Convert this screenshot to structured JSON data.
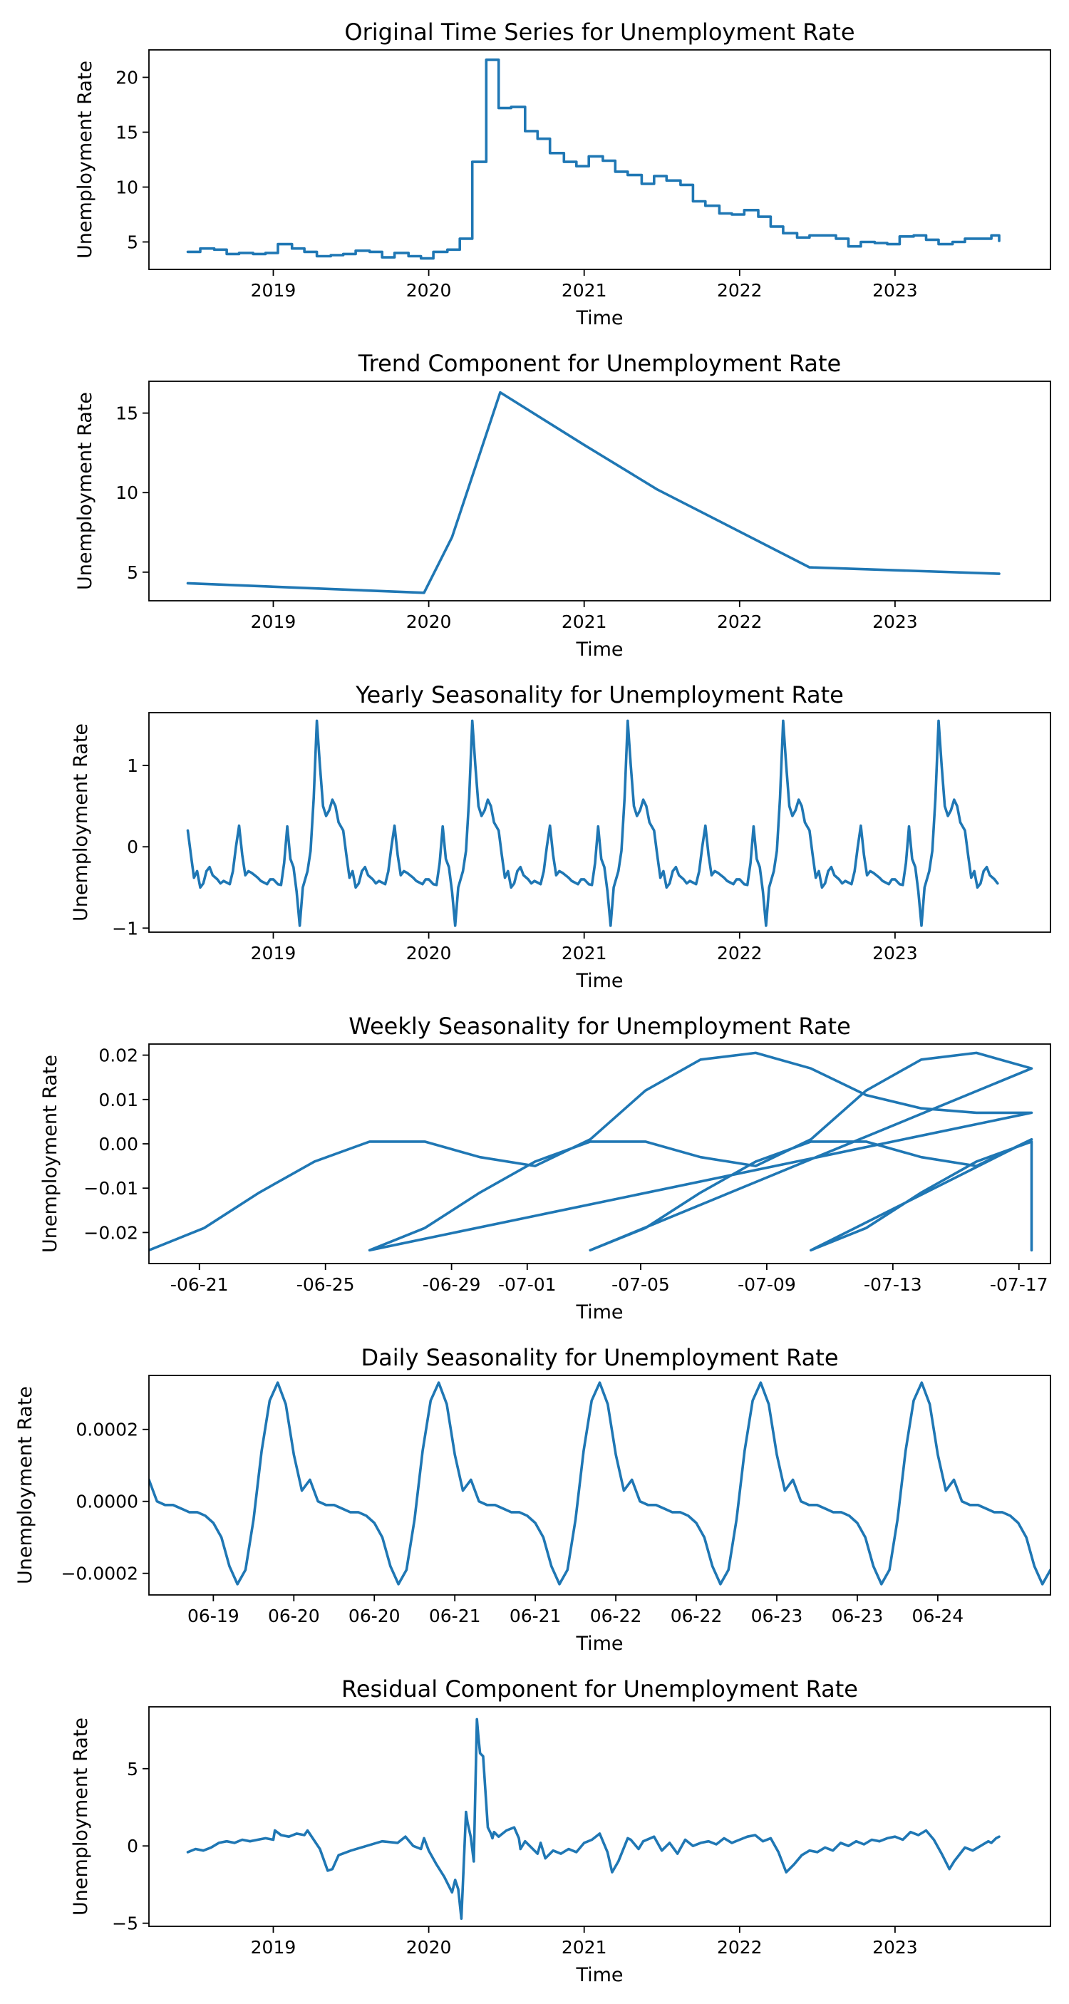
{
  "chart_data": [
    {
      "type": "line",
      "title": "Original Time Series for Unemployment Rate",
      "xlabel": "Time",
      "ylabel": "Unemployment Rate",
      "xlim": [
        2018.2,
        2024.0
      ],
      "ylim": [
        2.5,
        22.5
      ],
      "x_ticks": [
        2019,
        2020,
        2021,
        2022,
        2023
      ],
      "x_tick_labels": [
        "2019",
        "2020",
        "2021",
        "2022",
        "2023"
      ],
      "y_ticks": [
        5,
        10,
        15,
        20
      ],
      "y_tick_labels": [
        "5",
        "10",
        "15",
        "20"
      ],
      "step": true,
      "series": [
        {
          "name": "Unemployment Rate",
          "color": "#1f77b4",
          "x": [
            2018.45,
            2018.53,
            2018.62,
            2018.7,
            2018.78,
            2018.87,
            2018.95,
            2019.03,
            2019.12,
            2019.2,
            2019.28,
            2019.37,
            2019.45,
            2019.53,
            2019.62,
            2019.7,
            2019.78,
            2019.87,
            2019.95,
            2020.03,
            2020.12,
            2020.2,
            2020.28,
            2020.37,
            2020.45,
            2020.53,
            2020.62,
            2020.7,
            2020.78,
            2020.87,
            2020.95,
            2021.03,
            2021.12,
            2021.2,
            2021.28,
            2021.37,
            2021.45,
            2021.53,
            2021.62,
            2021.7,
            2021.78,
            2021.87,
            2021.95,
            2022.03,
            2022.12,
            2022.2,
            2022.28,
            2022.37,
            2022.45,
            2022.53,
            2022.62,
            2022.7,
            2022.78,
            2022.87,
            2022.95,
            2023.03,
            2023.12,
            2023.2,
            2023.28,
            2023.37,
            2023.45,
            2023.53,
            2023.62,
            2023.67
          ],
          "y": [
            4.1,
            4.4,
            4.3,
            3.9,
            4.0,
            3.9,
            4.0,
            4.8,
            4.4,
            4.1,
            3.7,
            3.8,
            3.9,
            4.2,
            4.1,
            3.6,
            4.0,
            3.7,
            3.5,
            4.1,
            4.3,
            5.3,
            12.3,
            21.6,
            17.2,
            17.3,
            15.1,
            14.4,
            13.1,
            12.3,
            11.9,
            12.8,
            12.4,
            11.4,
            11.1,
            10.3,
            11.0,
            10.6,
            10.2,
            8.7,
            8.3,
            7.6,
            7.5,
            7.9,
            7.3,
            6.4,
            5.8,
            5.4,
            5.6,
            5.6,
            5.3,
            4.6,
            5.0,
            4.9,
            4.8,
            5.5,
            5.6,
            5.2,
            4.8,
            5.0,
            5.3,
            5.3,
            5.6,
            5.1
          ]
        }
      ]
    },
    {
      "type": "line",
      "title": "Trend Component for Unemployment Rate",
      "xlabel": "Time",
      "ylabel": "Unemployment Rate",
      "xlim": [
        2018.2,
        2024.0
      ],
      "ylim": [
        3.2,
        17.0
      ],
      "x_ticks": [
        2019,
        2020,
        2021,
        2022,
        2023
      ],
      "x_tick_labels": [
        "2019",
        "2020",
        "2021",
        "2022",
        "2023"
      ],
      "y_ticks": [
        5,
        10,
        15
      ],
      "y_tick_labels": [
        "5",
        "10",
        "15"
      ],
      "series": [
        {
          "name": "Trend",
          "color": "#1f77b4",
          "x": [
            2018.45,
            2019.97,
            2020.15,
            2020.46,
            2021.0,
            2021.47,
            2022.45,
            2023.67
          ],
          "y": [
            4.3,
            3.7,
            7.2,
            16.3,
            13.0,
            10.2,
            5.3,
            4.9
          ]
        }
      ]
    },
    {
      "type": "line",
      "title": "Yearly Seasonality for Unemployment Rate",
      "xlabel": "Time",
      "ylabel": "Unemployment Rate",
      "xlim": [
        2018.2,
        2024.0
      ],
      "ylim": [
        -1.05,
        1.65
      ],
      "x_ticks": [
        2019,
        2020,
        2021,
        2022,
        2023
      ],
      "x_tick_labels": [
        "2019",
        "2020",
        "2021",
        "2022",
        "2023"
      ],
      "y_ticks": [
        -1,
        0,
        1
      ],
      "y_tick_labels": [
        "−1",
        "0",
        "1"
      ],
      "start": 2018.45,
      "end": 2023.67,
      "period": 1.0,
      "cycle_phase": [
        0,
        0.03,
        0.05,
        0.07,
        0.09,
        0.11,
        0.13,
        0.15,
        0.17,
        0.19,
        0.22,
        0.24,
        0.26,
        0.28,
        0.3,
        0.32,
        0.34,
        0.36,
        0.38,
        0.4,
        0.42,
        0.45,
        0.47,
        0.49,
        0.51,
        0.53,
        0.55,
        0.57,
        0.59,
        0.61,
        0.64,
        0.66,
        0.68,
        0.7,
        0.72,
        0.74,
        0.76,
        0.78,
        0.8,
        0.82,
        0.84,
        0.86,
        0.88,
        0.9,
        0.92,
        0.94,
        0.96,
        0.98
      ],
      "cycle_values": [
        -0.4,
        -0.46,
        -0.47,
        -0.2,
        0.25,
        -0.15,
        -0.25,
        -0.55,
        -0.97,
        -0.5,
        -0.3,
        -0.05,
        0.6,
        1.55,
        1.0,
        0.5,
        0.38,
        0.45,
        0.58,
        0.5,
        0.3,
        0.2,
        -0.1,
        -0.38,
        -0.3,
        -0.5,
        -0.45,
        -0.3,
        -0.25,
        -0.35,
        -0.4,
        -0.45,
        -0.42,
        -0.44,
        -0.46,
        -0.3,
        0.0,
        0.26,
        -0.1,
        -0.35,
        -0.3,
        -0.32,
        -0.35,
        -0.38,
        -0.42,
        -0.44,
        -0.46,
        -0.4
      ]
    },
    {
      "type": "line",
      "title": "Weekly Seasonality for Unemployment Rate",
      "xlabel": "Time",
      "ylabel": "Unemployment Rate",
      "xlim": [
        0,
        28.6
      ],
      "ylim": [
        -0.027,
        0.0225
      ],
      "x_ticks": [
        1.6,
        5.6,
        9.6,
        12.0,
        15.6,
        19.6,
        23.6,
        27.6
      ],
      "x_tick_labels": [
        "-06-21",
        "-06-25",
        "-06-29",
        "-07-01",
        "-07-05",
        "-07-09",
        "-07-13",
        "-07-17"
      ],
      "y_ticks": [
        -0.02,
        -0.01,
        0.0,
        0.01,
        0.02
      ],
      "y_tick_labels": [
        "−0.02",
        "−0.01",
        "0.00",
        "0.01",
        "0.02"
      ],
      "start": 0,
      "end": 28.6,
      "period": 7,
      "cycle_phase": [
        0,
        0.25,
        0.5,
        0.75,
        1.0,
        1.25,
        1.5,
        1.75,
        2.0,
        2.25,
        2.5,
        2.75,
        3.0,
        3.25,
        3.5,
        3.75,
        4.0,
        4.25,
        4.5,
        4.75,
        5.0,
        5.25,
        5.5,
        5.75,
        6.0,
        6.25,
        6.5,
        6.75
      ],
      "cycle_values": [
        -0.024,
        -0.019,
        -0.011,
        -0.004,
        0.0005,
        0.0005,
        -0.003,
        -0.005,
        0.001,
        0.012,
        0.019,
        0.0205,
        0.017,
        0.011,
        0.008,
        0.007,
        0.007,
        0.0065,
        0.003,
        -0.006,
        -0.016,
        -0.023,
        -0.0245,
        -0.021,
        -0.012,
        -0.004,
        0.0,
        -0.012
      ]
    },
    {
      "type": "line",
      "title": "Daily Seasonality for Unemployment Rate",
      "xlabel": "Time",
      "ylabel": "Unemployment Rate",
      "xlim": [
        0,
        5.6
      ],
      "ylim": [
        -0.00026,
        0.00035
      ],
      "x_ticks": [
        0.4,
        0.9,
        1.4,
        1.9,
        2.4,
        2.9,
        3.4,
        3.9,
        4.4,
        4.9
      ],
      "x_tick_labels": [
        "06-19",
        "06-20",
        "06-20",
        "06-21",
        "06-21",
        "06-22",
        "06-22",
        "06-23",
        "06-23",
        "06-24"
      ],
      "visible_x_tick_labels": [
        "06-19",
        "06-20",
        "06-20",
        "06-21",
        "06-21",
        "06-22",
        "06-22",
        "06-23"
      ],
      "y_ticks": [
        -0.0002,
        0.0,
        0.0002
      ],
      "y_tick_labels": [
        "−0.0002",
        "0.0000",
        "0.0002"
      ],
      "start": 0,
      "end": 5.6,
      "period": 1.0,
      "cycle_phase": [
        0,
        0.05,
        0.1,
        0.15,
        0.2,
        0.25,
        0.3,
        0.35,
        0.4,
        0.45,
        0.5,
        0.55,
        0.6,
        0.65,
        0.7,
        0.75,
        0.8,
        0.85,
        0.9,
        0.95
      ],
      "cycle_values": [
        6e-05,
        0.0,
        -1e-05,
        -1e-05,
        -2e-05,
        -3e-05,
        -3e-05,
        -4e-05,
        -6e-05,
        -0.0001,
        -0.00018,
        -0.00023,
        -0.00019,
        -5e-05,
        0.00014,
        0.00028,
        0.00033,
        0.00027,
        0.00013,
        3e-05
      ]
    },
    {
      "type": "line",
      "title": "Residual Component for Unemployment Rate",
      "xlabel": "Time",
      "ylabel": "Unemployment Rate",
      "xlim": [
        2018.2,
        2024.0
      ],
      "ylim": [
        -5.2,
        9.0
      ],
      "x_ticks": [
        2019,
        2020,
        2021,
        2022,
        2023
      ],
      "x_tick_labels": [
        "2019",
        "2020",
        "2021",
        "2022",
        "2023"
      ],
      "y_ticks": [
        -5,
        0,
        5
      ],
      "y_tick_labels": [
        "−5",
        "0",
        "5"
      ],
      "series": [
        {
          "name": "Residual",
          "color": "#1f77b4",
          "x": [
            2018.45,
            2018.5,
            2018.55,
            2018.6,
            2018.65,
            2018.7,
            2018.75,
            2018.8,
            2018.85,
            2018.9,
            2018.95,
            2019.0,
            2019.01,
            2019.05,
            2019.1,
            2019.15,
            2019.2,
            2019.22,
            2019.3,
            2019.35,
            2019.38,
            2019.42,
            2019.5,
            2019.6,
            2019.7,
            2019.8,
            2019.85,
            2019.9,
            2019.95,
            2019.97,
            2020.0,
            2020.05,
            2020.1,
            2020.15,
            2020.17,
            2020.19,
            2020.21,
            2020.24,
            2020.25,
            2020.27,
            2020.29,
            2020.31,
            2020.32,
            2020.33,
            2020.35,
            2020.38,
            2020.4,
            2020.41,
            2020.42,
            2020.45,
            2020.5,
            2020.55,
            2020.58,
            2020.59,
            2020.62,
            2020.7,
            2020.72,
            2020.75,
            2020.8,
            2020.85,
            2020.9,
            2020.95,
            2021.0,
            2021.05,
            2021.1,
            2021.15,
            2021.18,
            2021.22,
            2021.28,
            2021.3,
            2021.35,
            2021.38,
            2021.45,
            2021.5,
            2021.55,
            2021.6,
            2021.65,
            2021.7,
            2021.75,
            2021.8,
            2021.85,
            2021.9,
            2021.95,
            2022.0,
            2022.05,
            2022.1,
            2022.15,
            2022.2,
            2022.25,
            2022.3,
            2022.35,
            2022.4,
            2022.45,
            2022.5,
            2022.55,
            2022.6,
            2022.65,
            2022.7,
            2022.75,
            2022.8,
            2022.85,
            2022.9,
            2022.95,
            2023.0,
            2023.05,
            2023.1,
            2023.15,
            2023.2,
            2023.25,
            2023.3,
            2023.35,
            2023.38,
            2023.45,
            2023.5,
            2023.55,
            2023.6,
            2023.62,
            2023.65,
            2023.67
          ],
          "y": [
            -0.4,
            -0.2,
            -0.3,
            -0.1,
            0.2,
            0.3,
            0.2,
            0.4,
            0.3,
            0.4,
            0.5,
            0.4,
            1.0,
            0.7,
            0.6,
            0.8,
            0.7,
            1.0,
            -0.2,
            -1.6,
            -1.5,
            -0.6,
            -0.3,
            0.0,
            0.3,
            0.2,
            0.6,
            0.0,
            -0.2,
            0.5,
            -0.3,
            -1.2,
            -2.0,
            -3.0,
            -2.2,
            -2.8,
            -4.7,
            2.2,
            1.5,
            0.6,
            -1.0,
            8.2,
            7.0,
            6.0,
            5.8,
            1.2,
            0.8,
            0.5,
            0.9,
            0.6,
            1.0,
            1.2,
            0.5,
            -0.2,
            0.3,
            -0.5,
            0.2,
            -0.8,
            -0.3,
            -0.5,
            -0.2,
            -0.4,
            0.2,
            0.4,
            0.8,
            -0.4,
            -1.7,
            -1.0,
            0.5,
            0.4,
            -0.2,
            0.3,
            0.6,
            -0.3,
            0.2,
            -0.5,
            0.4,
            0.0,
            0.2,
            0.3,
            0.1,
            0.5,
            0.2,
            0.4,
            0.6,
            0.7,
            0.3,
            0.5,
            -0.4,
            -1.7,
            -1.2,
            -0.6,
            -0.3,
            -0.4,
            -0.1,
            -0.3,
            0.2,
            0.0,
            0.3,
            0.1,
            0.4,
            0.3,
            0.5,
            0.6,
            0.4,
            0.9,
            0.7,
            1.0,
            0.4,
            -0.5,
            -1.5,
            -1.0,
            -0.1,
            -0.3,
            0.0,
            0.3,
            0.2,
            0.5,
            0.6
          ]
        }
      ]
    }
  ]
}
